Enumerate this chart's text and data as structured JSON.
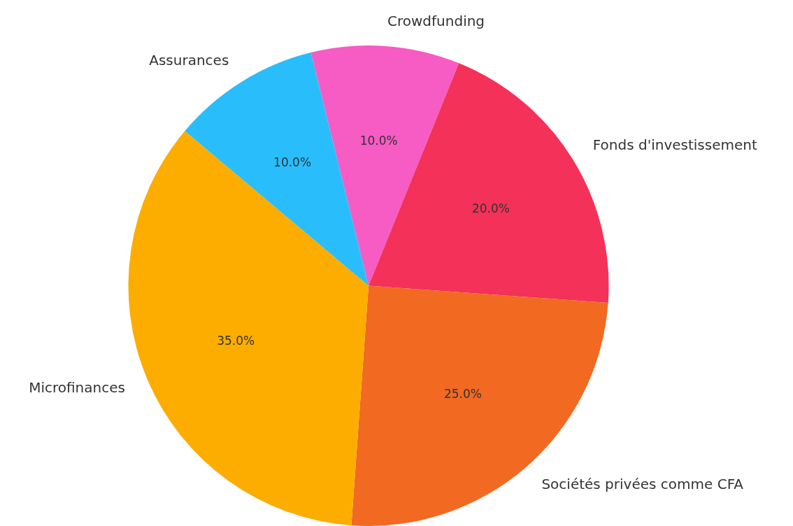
{
  "chart_data": {
    "type": "pie",
    "categories": [
      "Crowdfunding",
      "Fonds d'investissement",
      "Sociétés privées comme CFA",
      "Microfinances",
      "Assurances"
    ],
    "values": [
      10,
      20,
      25,
      35,
      10
    ],
    "value_labels": [
      "10.0%",
      "20.0%",
      "25.0%",
      "35.0%",
      "10.0%"
    ],
    "colors": [
      "#f75bc4",
      "#f43158",
      "#f26922",
      "#fcad00",
      "#29bdfc"
    ],
    "legend": false
  }
}
